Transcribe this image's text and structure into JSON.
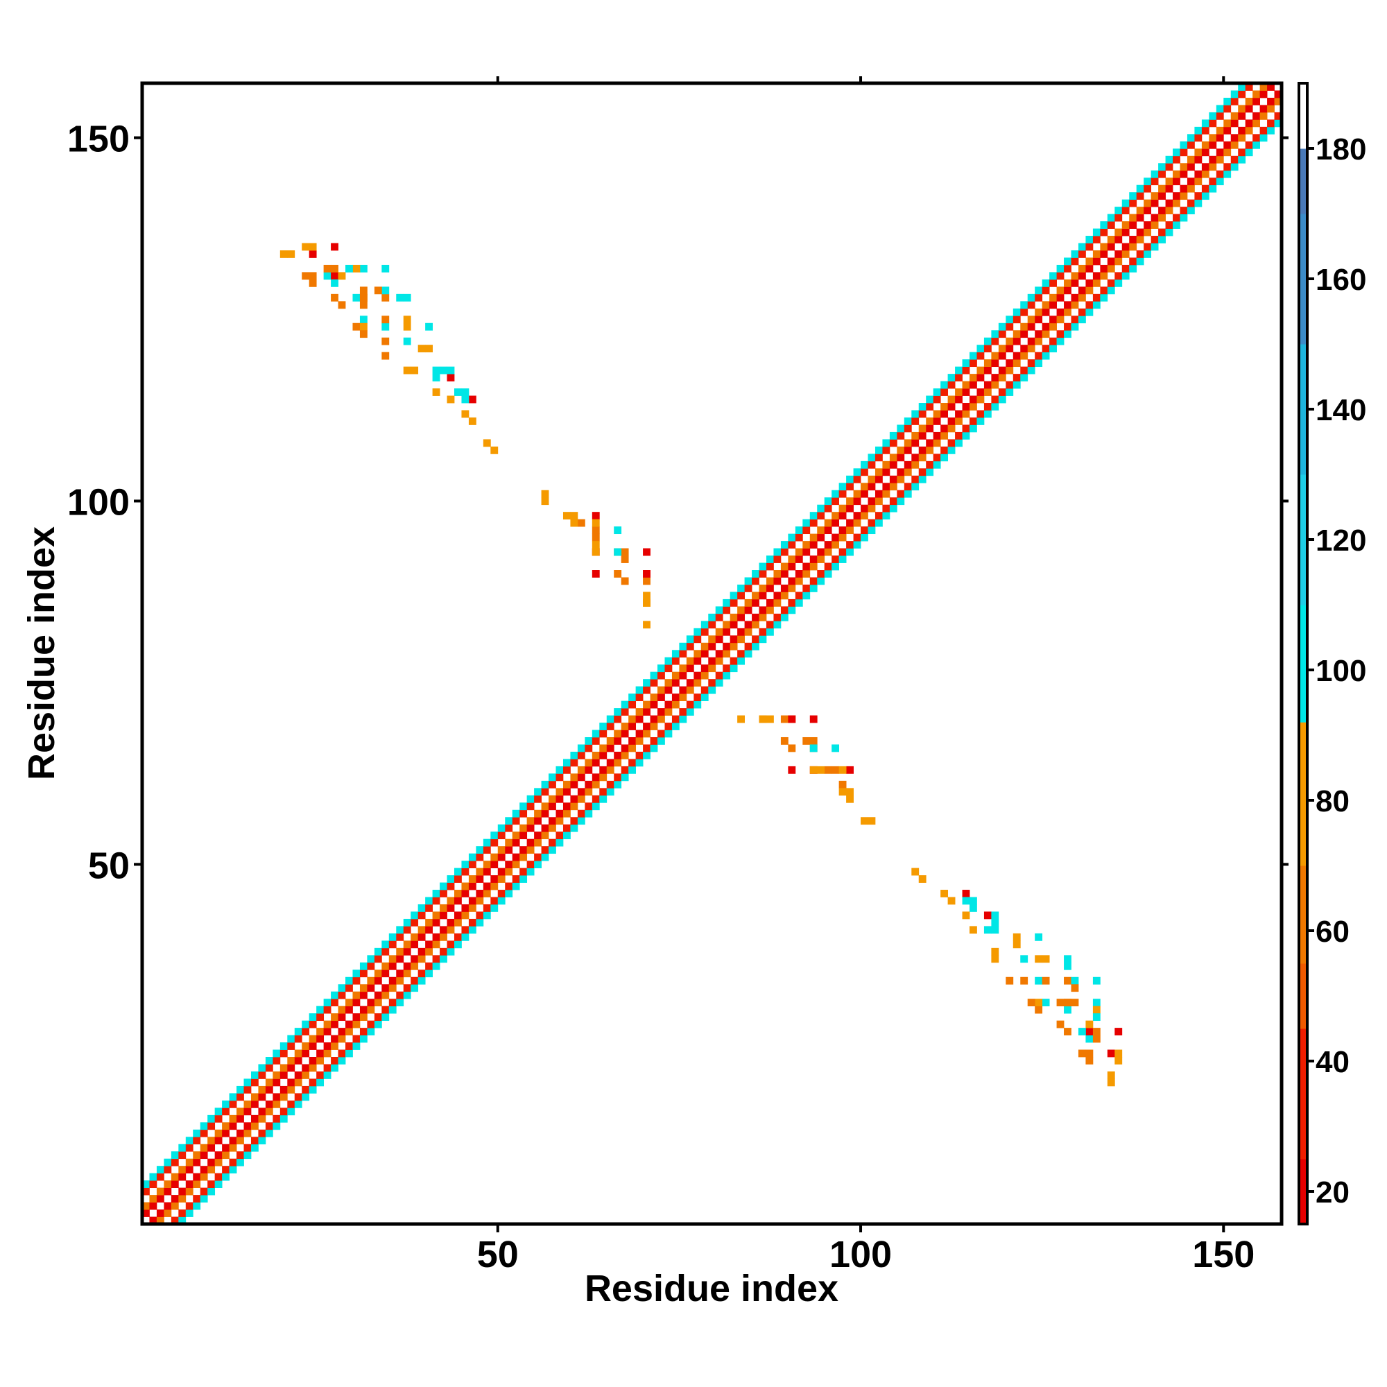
{
  "chart_data": {
    "type": "heatmap",
    "title": "",
    "xlabel": "Residue index",
    "ylabel": "Residue index",
    "xlim": [
      1,
      157
    ],
    "ylim": [
      1,
      157
    ],
    "x_ticks": [
      50,
      100,
      150
    ],
    "y_ticks": [
      50,
      100,
      150
    ],
    "grid": false,
    "legend": "colorbar right",
    "colorbar": {
      "range": [
        15,
        190
      ],
      "ticks": [
        20,
        40,
        60,
        80,
        100,
        120,
        140,
        160,
        180
      ],
      "bins": [
        {
          "from": 15,
          "to": 25,
          "color": "#e60000"
        },
        {
          "from": 25,
          "to": 45,
          "color": "#f01e00"
        },
        {
          "from": 45,
          "to": 55,
          "color": "#f05a00"
        },
        {
          "from": 55,
          "to": 70,
          "color": "#f07800"
        },
        {
          "from": 70,
          "to": 92,
          "color": "#f59a00"
        },
        {
          "from": 92,
          "to": 110,
          "color": "#00e6e6"
        },
        {
          "from": 110,
          "to": 130,
          "color": "#1ecde6"
        },
        {
          "from": 130,
          "to": 150,
          "color": "#1eb4dc"
        },
        {
          "from": 150,
          "to": 170,
          "color": "#3c8cc8"
        },
        {
          "from": 170,
          "to": 180,
          "color": "#4a7ab8"
        },
        {
          "from": 180,
          "to": 190,
          "color": "#ffffff"
        }
      ]
    },
    "diagonal_band": {
      "x_range": [
        1,
        157
      ],
      "half_width": 5,
      "value_by_offset": {
        "0": 190,
        "1": 20,
        "2": 65,
        "3": 190,
        "4": 35,
        "5": 100
      }
    },
    "cells": [
      [
        20,
        134,
        70
      ],
      [
        21,
        134,
        70
      ],
      [
        24,
        134,
        20
      ],
      [
        23,
        131,
        60
      ],
      [
        24,
        131,
        65
      ],
      [
        26,
        131,
        100
      ],
      [
        27,
        131,
        20
      ],
      [
        28,
        131,
        80
      ],
      [
        24,
        130,
        65
      ],
      [
        27,
        130,
        100
      ],
      [
        27,
        128,
        65
      ],
      [
        30,
        128,
        100
      ],
      [
        31,
        128,
        80
      ],
      [
        28,
        127,
        65
      ],
      [
        31,
        127,
        65
      ],
      [
        31,
        125,
        100
      ],
      [
        30,
        124,
        65
      ],
      [
        31,
        124,
        80
      ],
      [
        34,
        124,
        100
      ],
      [
        31,
        123,
        65
      ],
      [
        34,
        122,
        65
      ],
      [
        37,
        122,
        100
      ],
      [
        34,
        120,
        65
      ],
      [
        37,
        118,
        70
      ],
      [
        38,
        118,
        70
      ],
      [
        41,
        118,
        100
      ],
      [
        41,
        117,
        100
      ],
      [
        41,
        115,
        70
      ],
      [
        44,
        115,
        100
      ],
      [
        45,
        115,
        100
      ],
      [
        45,
        112,
        80
      ],
      [
        48,
        108,
        70
      ],
      [
        56,
        101,
        80
      ],
      [
        59,
        98,
        70
      ],
      [
        60,
        98,
        70
      ],
      [
        63,
        98,
        20
      ],
      [
        63,
        96,
        65
      ],
      [
        66,
        96,
        100
      ],
      [
        63,
        95,
        65
      ],
      [
        63,
        93,
        20
      ],
      [
        66,
        93,
        65
      ],
      [
        67,
        93,
        65
      ],
      [
        70,
        93,
        20
      ],
      [
        67,
        92,
        65
      ],
      [
        70,
        90,
        65
      ],
      [
        70,
        89,
        65
      ],
      [
        70,
        86,
        70
      ],
      [
        83,
        70,
        70
      ],
      [
        86,
        70,
        70
      ],
      [
        87,
        70,
        70
      ],
      [
        90,
        70,
        20
      ],
      [
        89,
        67,
        65
      ],
      [
        90,
        66,
        65
      ],
      [
        93,
        66,
        100
      ],
      [
        90,
        63,
        20
      ],
      [
        93,
        63,
        70
      ],
      [
        94,
        63,
        70
      ],
      [
        97,
        63,
        70
      ],
      [
        97,
        61,
        65
      ],
      [
        97,
        60,
        70
      ],
      [
        100,
        56,
        80
      ],
      [
        107,
        49,
        70
      ],
      [
        111,
        46,
        80
      ],
      [
        114,
        46,
        20
      ],
      [
        114,
        45,
        100
      ],
      [
        114,
        43,
        70
      ],
      [
        117,
        43,
        20
      ],
      [
        118,
        43,
        100
      ],
      [
        118,
        42,
        100
      ],
      [
        121,
        40,
        70
      ],
      [
        124,
        40,
        100
      ],
      [
        121,
        39,
        70
      ],
      [
        124,
        37,
        70
      ],
      [
        125,
        37,
        70
      ],
      [
        128,
        37,
        100
      ],
      [
        128,
        36,
        100
      ],
      [
        125,
        34,
        65
      ],
      [
        128,
        34,
        65
      ],
      [
        129,
        34,
        100
      ],
      [
        132,
        34,
        100
      ],
      [
        129,
        33,
        65
      ],
      [
        128,
        31,
        65
      ],
      [
        129,
        31,
        65
      ],
      [
        132,
        31,
        100
      ],
      [
        132,
        30,
        80
      ],
      [
        132,
        29,
        100
      ],
      [
        132,
        27,
        65
      ],
      [
        135,
        27,
        20
      ],
      [
        132,
        26,
        65
      ],
      [
        135,
        24,
        70
      ],
      [
        135,
        23,
        70
      ]
    ]
  }
}
